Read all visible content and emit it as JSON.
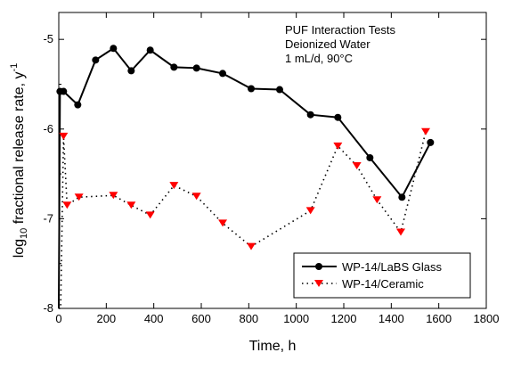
{
  "chart_data": {
    "type": "line",
    "xlabel": "Time, h",
    "ylabel_main": "log",
    "ylabel_sub": "10",
    "ylabel_rest": " fractional release rate, y",
    "ylabel_sup": "-1",
    "xlim": [
      0,
      1800
    ],
    "ylim": [
      -8,
      -4.7
    ],
    "x_ticks": [
      0,
      200,
      400,
      600,
      800,
      1000,
      1200,
      1400,
      1600,
      1800
    ],
    "y_ticks": [
      -8,
      -7,
      -6,
      -5
    ],
    "grid": false,
    "annotation": [
      "PUF Interaction Tests",
      "Deionized Water",
      "1 mL/d, 90°C"
    ],
    "legend_position": "bottom-right",
    "series": [
      {
        "name": "WP-14/LaBS Glass",
        "color": "#000000",
        "marker": "circle",
        "line": "solid",
        "x": [
          0,
          5,
          20,
          80,
          155,
          230,
          305,
          385,
          485,
          580,
          690,
          810,
          930,
          1060,
          1175,
          1310,
          1445,
          1565
        ],
        "y": [
          -8,
          -5.58,
          -5.58,
          -5.73,
          -5.23,
          -5.1,
          -5.35,
          -5.12,
          -5.31,
          -5.32,
          -5.38,
          -5.55,
          -5.56,
          -5.84,
          -5.87,
          -6.32,
          -6.76,
          -6.15
        ]
      },
      {
        "name": "WP-14/Ceramic",
        "color": "#ff0000",
        "marker": "triangle-down",
        "line": "dotted",
        "x": [
          0,
          8,
          20,
          35,
          85,
          230,
          305,
          385,
          485,
          580,
          690,
          810,
          1060,
          1175,
          1255,
          1340,
          1440,
          1545
        ],
        "y": [
          -8,
          -8,
          -6.08,
          -6.85,
          -6.76,
          -6.74,
          -6.85,
          -6.96,
          -6.63,
          -6.75,
          -7.05,
          -7.31,
          -6.91,
          -6.19,
          -6.41,
          -6.79,
          -7.15,
          -6.03
        ]
      }
    ]
  }
}
